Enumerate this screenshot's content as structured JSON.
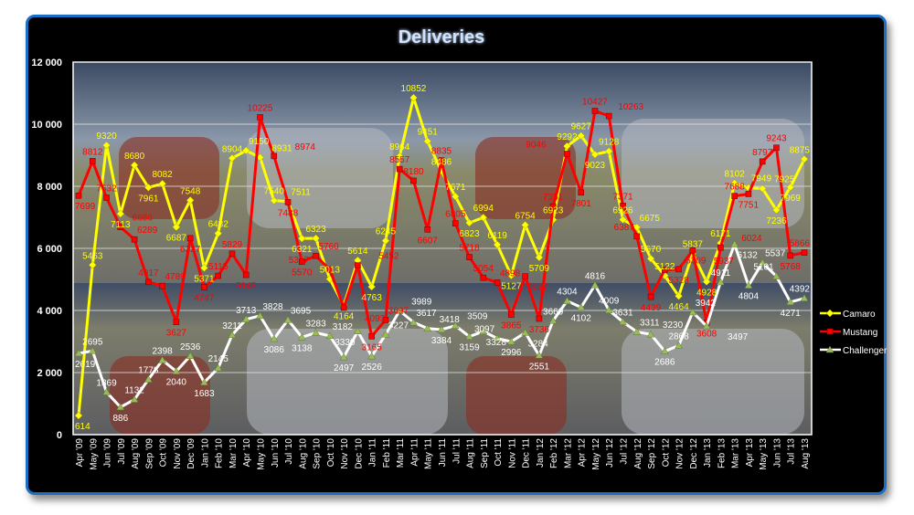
{
  "chart_data": {
    "type": "line",
    "title": "Deliveries",
    "xlabel": "",
    "ylabel": "",
    "ylim": [
      0,
      12000
    ],
    "yticks": [
      0,
      2000,
      4000,
      6000,
      8000,
      10000,
      12000
    ],
    "ytick_labels": [
      "0",
      "2 000",
      "4 000",
      "6 000",
      "8 000",
      "10 000",
      "12 000"
    ],
    "grid": true,
    "legend_position": "right",
    "categories": [
      "Apr '09",
      "May '09",
      "Jun '09",
      "Jul '09",
      "Aug '09",
      "Sep '09",
      "Oct '09",
      "Nov '09",
      "Dec '09",
      "Jan '10",
      "Feb '10",
      "Mar '10",
      "Apr '10",
      "May '10",
      "Jun '10",
      "Jul '10",
      "Aug '10",
      "Sep '10",
      "Oct '10",
      "Nov '10",
      "Dec '10",
      "Jan '11",
      "Feb '11",
      "Mar '11",
      "Apr '11",
      "May '11",
      "Jun '11",
      "Jul '11",
      "Aug '11",
      "Sep '11",
      "Oct '11",
      "Nov '11",
      "Dec '11",
      "Jan '12",
      "Feb '12",
      "Mar '12",
      "Apr '12",
      "May '12",
      "Jun '12",
      "Jul '12",
      "Aug '12",
      "Sep '12",
      "Oct '12",
      "Nov '12",
      "Dec '12",
      "Jan '13",
      "Feb '13",
      "Mar '13",
      "Apr '13",
      "May '13",
      "Jun '13",
      "Jul '13",
      "Aug '13"
    ],
    "series": [
      {
        "name": "Camaro",
        "color": "#ffff00",
        "marker": "diamond",
        "values": [
          614,
          5463,
          9320,
          7113,
          8680,
          7961,
          8082,
          6687,
          7548,
          5371,
          6482,
          8904,
          9150,
          8931,
          7540,
          7511,
          6321,
          6323,
          5013,
          4164,
          5614,
          4763,
          6245,
          8964,
          10852,
          9451,
          8486,
          7671,
          6823,
          6994,
          6119,
          5127,
          6754,
          5709,
          6923,
          9292,
          9627,
          9023,
          9128,
          6926,
          6675,
          5670,
          5122,
          4464,
          5837,
          4928,
          6171,
          8102,
          7949,
          7925,
          7236,
          7969,
          8875
        ]
      },
      {
        "name": "Mustang",
        "color": "#ff0000",
        "marker": "square",
        "values": [
          7699,
          8812,
          7632,
          6686,
          6289,
          4917,
          4789,
          3627,
          6327,
          4747,
          5115,
          5829,
          5145,
          10225,
          8974,
          7488,
          5570,
          5760,
          5317,
          4093,
          5452,
          3165,
          3697,
          8557,
          8180,
          6607,
          8835,
          6805,
          5718,
          5054,
          4898,
          3865,
          5097,
          3736,
          7351,
          9046,
          7801,
          10427,
          10263,
          7371,
          6387,
          4439,
          5309,
          5328,
          5937,
          3608,
          6024,
          7688,
          7751,
          8797,
          9243,
          5768,
          5866
        ]
      },
      {
        "name": "Challenger",
        "color": "#ffffff",
        "marker": "triangle",
        "values": [
          2619,
          2695,
          1369,
          886,
          1132,
          1778,
          2398,
          2040,
          2536,
          1683,
          2145,
          3211,
          3713,
          3828,
          3086,
          3695,
          3138,
          3283,
          3182,
          2497,
          3330,
          2526,
          3227,
          3989,
          3617,
          3418,
          3384,
          3509,
          3159,
          3328,
          3097,
          2996,
          3284,
          2551,
          3669,
          4304,
          4102,
          4816,
          4009,
          3631,
          3311,
          3230,
          2686,
          2868,
          3942,
          3497,
          4911,
          6132,
          4804,
          5537,
          5101,
          4271,
          4392
        ]
      }
    ]
  }
}
